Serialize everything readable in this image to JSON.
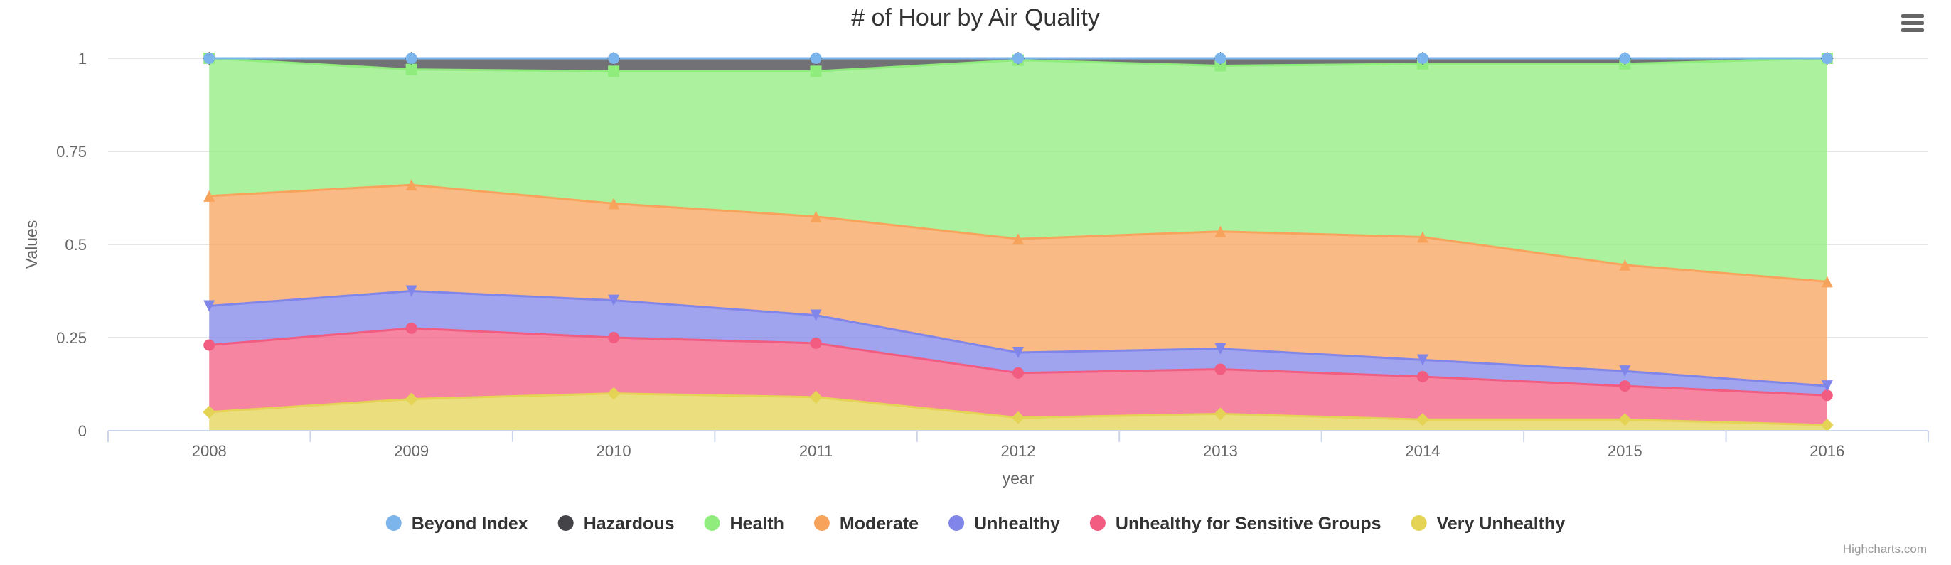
{
  "chart_data": {
    "type": "area",
    "stacking": "percent",
    "title": "# of Hour by Air Quality",
    "xlabel": "year",
    "ylabel": "Values",
    "categories": [
      "2008",
      "2009",
      "2010",
      "2011",
      "2012",
      "2013",
      "2014",
      "2015",
      "2016"
    ],
    "ylim": [
      0,
      1
    ],
    "yticks": [
      "0",
      "0.25",
      "0.5",
      "0.75",
      "1"
    ],
    "grid": true,
    "legend_position": "bottom-center",
    "series": [
      {
        "name": "Very Unhealthy",
        "color": "#e4d354",
        "marker": "diamond",
        "values": [
          0.05,
          0.085,
          0.1,
          0.09,
          0.035,
          0.045,
          0.03,
          0.03,
          0.015
        ]
      },
      {
        "name": "Unhealthy for Sensitive Groups",
        "color": "#f15c80",
        "marker": "circle",
        "values": [
          0.18,
          0.19,
          0.15,
          0.145,
          0.12,
          0.12,
          0.115,
          0.09,
          0.08
        ]
      },
      {
        "name": "Unhealthy",
        "color": "#8085e9",
        "marker": "triangle-down",
        "values": [
          0.105,
          0.1,
          0.1,
          0.075,
          0.055,
          0.055,
          0.045,
          0.04,
          0.025
        ]
      },
      {
        "name": "Moderate",
        "color": "#f7a35c",
        "marker": "triangle",
        "values": [
          0.295,
          0.285,
          0.26,
          0.265,
          0.305,
          0.315,
          0.33,
          0.285,
          0.28
        ]
      },
      {
        "name": "Health",
        "color": "#90ed7d",
        "marker": "square",
        "values": [
          0.37,
          0.31,
          0.355,
          0.39,
          0.48,
          0.445,
          0.465,
          0.54,
          0.6
        ]
      },
      {
        "name": "Hazardous",
        "color": "#434348",
        "marker": "diamond",
        "values": [
          0.0,
          0.03,
          0.035,
          0.035,
          0.005,
          0.02,
          0.015,
          0.015,
          0.0
        ]
      },
      {
        "name": "Beyond Index",
        "color": "#7cb5ec",
        "marker": "circle",
        "values": [
          0.0,
          0.0,
          0.0,
          0.0,
          0.0,
          0.0,
          0.0,
          0.0,
          0.0
        ]
      }
    ],
    "legend_order": [
      "Beyond Index",
      "Hazardous",
      "Health",
      "Moderate",
      "Unhealthy",
      "Unhealthy for Sensitive Groups",
      "Very Unhealthy"
    ]
  },
  "credits": "Highcharts.com",
  "menu": {
    "icon": "hamburger-menu-icon"
  }
}
